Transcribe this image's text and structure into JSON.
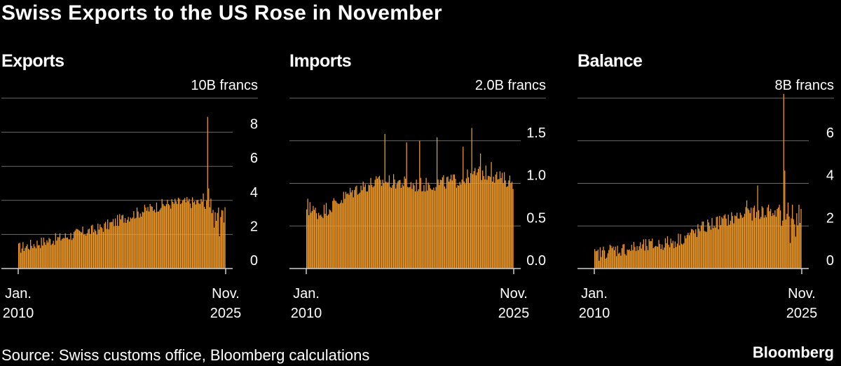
{
  "title": "Swiss Exports to the US Rose in November",
  "source": "Source: Swiss customs office, Bloomberg calculations",
  "brand": "Bloomberg",
  "colors": {
    "bar": "#f39c2b",
    "grid": "#6b6b6b",
    "axis": "#cfcfcf",
    "background": "#000000",
    "text": "#ffffff"
  },
  "x_axis": {
    "start_label": [
      "Jan.",
      "2010"
    ],
    "end_label": [
      "Nov.",
      "2025"
    ]
  },
  "chart_data": [
    {
      "type": "bar",
      "title": "Exports",
      "unit_label": "10B francs",
      "ylim": [
        0,
        10
      ],
      "yticks": [
        0,
        2,
        4,
        6,
        8
      ],
      "ytick_labels": [
        "0",
        "2",
        "4",
        "6",
        "8"
      ],
      "period": "Jan. 2010 - Nov. 2025",
      "anchors": [
        [
          0,
          1.2
        ],
        [
          12,
          1.4
        ],
        [
          24,
          1.6
        ],
        [
          36,
          1.75
        ],
        [
          48,
          1.95
        ],
        [
          60,
          2.15
        ],
        [
          72,
          2.3
        ],
        [
          84,
          2.6
        ],
        [
          96,
          2.95
        ],
        [
          108,
          3.25
        ],
        [
          120,
          3.5
        ],
        [
          132,
          3.75
        ],
        [
          144,
          3.85
        ],
        [
          156,
          3.9
        ],
        [
          168,
          3.85
        ],
        [
          178,
          3.5
        ],
        [
          185,
          3.2
        ],
        [
          190,
          3.6
        ]
      ],
      "spikes": [
        [
          170,
          4.4
        ],
        [
          172,
          3.5
        ],
        [
          174,
          8.9
        ],
        [
          175,
          4.7
        ],
        [
          176,
          3.6
        ],
        [
          177,
          4.1
        ],
        [
          180,
          2.4
        ],
        [
          181,
          3.3
        ],
        [
          182,
          2.8
        ],
        [
          185,
          1.9
        ],
        [
          188,
          3.4
        ],
        [
          189,
          2.7
        ],
        [
          190,
          3.6
        ]
      ],
      "noise": 0.35
    },
    {
      "type": "bar",
      "title": "Imports",
      "unit_label": "2.0B francs",
      "ylim": [
        0,
        2.0
      ],
      "yticks": [
        0,
        0.5,
        1.0,
        1.5
      ],
      "ytick_labels": [
        "0.0",
        "0.5",
        "1.0",
        "1.5"
      ],
      "period": "Jan. 2010 - Nov. 2025",
      "anchors": [
        [
          0,
          0.62
        ],
        [
          6,
          0.68
        ],
        [
          12,
          0.65
        ],
        [
          24,
          0.75
        ],
        [
          36,
          0.85
        ],
        [
          48,
          0.95
        ],
        [
          60,
          1.0
        ],
        [
          72,
          1.02
        ],
        [
          84,
          1.02
        ],
        [
          96,
          0.98
        ],
        [
          108,
          0.98
        ],
        [
          120,
          1.0
        ],
        [
          132,
          1.02
        ],
        [
          144,
          1.05
        ],
        [
          156,
          1.12
        ],
        [
          168,
          1.12
        ],
        [
          178,
          1.06
        ],
        [
          190,
          1.02
        ]
      ],
      "spikes": [
        [
          1,
          0.82
        ],
        [
          3,
          0.78
        ],
        [
          72,
          1.58
        ],
        [
          92,
          1.48
        ],
        [
          104,
          1.5
        ],
        [
          120,
          1.54
        ],
        [
          144,
          1.43
        ],
        [
          152,
          1.65
        ],
        [
          160,
          1.35
        ],
        [
          170,
          1.25
        ]
      ],
      "noise": 0.09
    },
    {
      "type": "bar",
      "title": "Balance",
      "unit_label": "8B francs",
      "ylim": [
        0,
        8
      ],
      "yticks": [
        0,
        2,
        4,
        6
      ],
      "ytick_labels": [
        "0",
        "2",
        "4",
        "6"
      ],
      "period": "Jan. 2010 - Nov. 2025",
      "anchors": [
        [
          0,
          0.6
        ],
        [
          12,
          0.85
        ],
        [
          24,
          0.9
        ],
        [
          36,
          0.95
        ],
        [
          48,
          1.05
        ],
        [
          60,
          1.15
        ],
        [
          72,
          1.25
        ],
        [
          84,
          1.5
        ],
        [
          96,
          1.8
        ],
        [
          108,
          2.1
        ],
        [
          120,
          2.25
        ],
        [
          132,
          2.45
        ],
        [
          144,
          2.6
        ],
        [
          156,
          2.65
        ],
        [
          168,
          2.6
        ],
        [
          178,
          2.4
        ],
        [
          190,
          2.3
        ]
      ],
      "spikes": [
        [
          140,
          3.2
        ],
        [
          150,
          3.9
        ],
        [
          160,
          3.0
        ],
        [
          165,
          2.5
        ],
        [
          170,
          3.0
        ],
        [
          172,
          2.0
        ],
        [
          174,
          8.2
        ],
        [
          175,
          4.6
        ],
        [
          176,
          2.3
        ],
        [
          178,
          3.1
        ],
        [
          180,
          1.2
        ],
        [
          182,
          3.0
        ],
        [
          185,
          1.5
        ],
        [
          188,
          3.0
        ],
        [
          190,
          2.8
        ]
      ],
      "noise": 0.35
    }
  ]
}
